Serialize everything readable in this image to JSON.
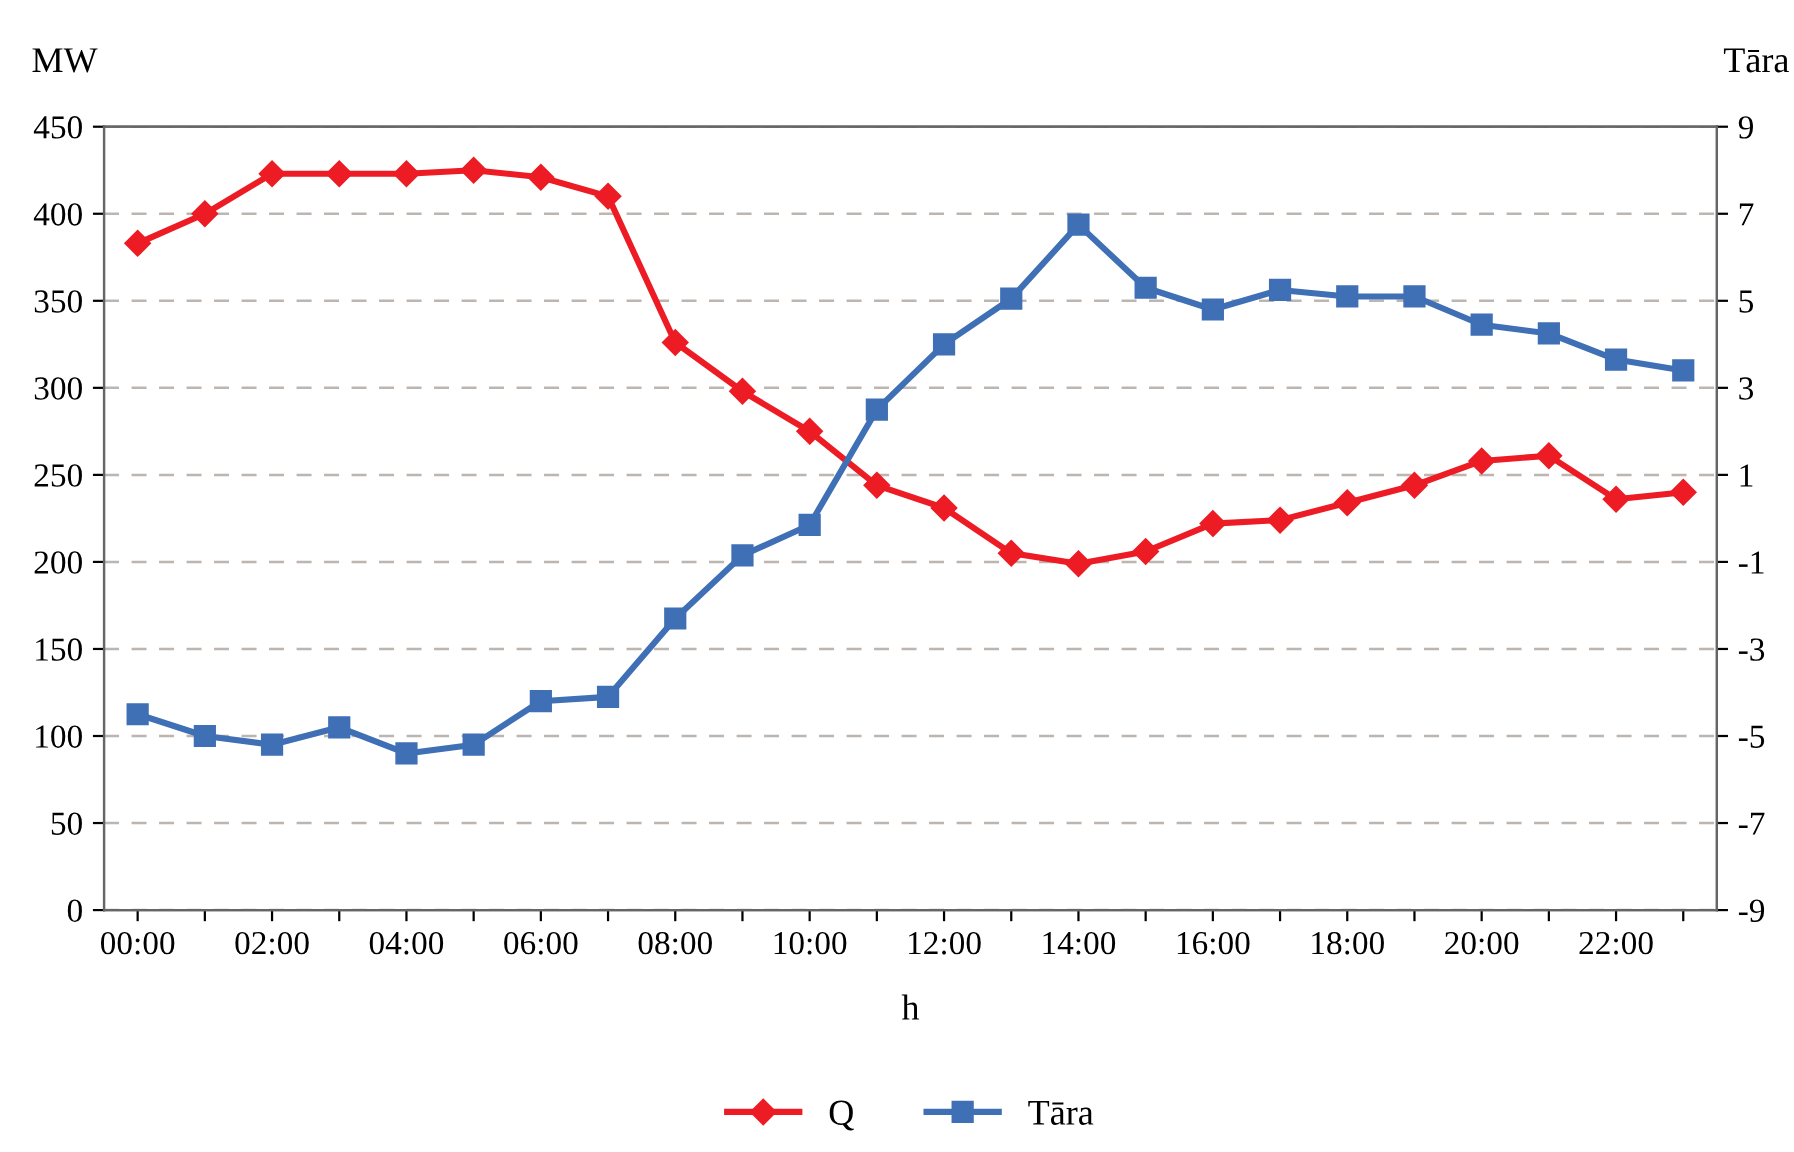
{
  "chart_data": {
    "type": "line",
    "categories": [
      "00:00",
      null,
      "02:00",
      null,
      "04:00",
      null,
      "06:00",
      null,
      "08:00",
      null,
      "10:00",
      null,
      "12:00",
      null,
      "14:00",
      null,
      "16:00",
      null,
      "18:00",
      null,
      "20:00",
      null,
      "22:00",
      null
    ],
    "xlabel": "h",
    "ylabel": "MW",
    "y2label": "Tāra",
    "series": [
      {
        "name": "Q",
        "color": "#ed1c24",
        "marker": "diamond",
        "values": [
          383,
          400,
          423,
          423,
          423,
          425,
          421,
          410,
          326,
          298,
          275,
          244,
          231,
          205,
          199,
          206,
          222,
          224,
          234,
          244,
          258,
          261,
          236,
          240
        ]
      },
      {
        "name": "Tāra",
        "color": "#3f6fb5",
        "marker": "square",
        "axis": "y2",
        "values": [
          -4.5,
          -5.0,
          -5.2,
          -4.8,
          -5.4,
          -5.2,
          -4.2,
          -4.1,
          -2.3,
          -0.85,
          -0.15,
          2.5,
          4.0,
          5.05,
          6.75,
          5.3,
          4.8,
          5.25,
          5.1,
          5.1,
          4.45,
          4.25,
          3.65,
          3.4
        ]
      }
    ],
    "ylim": [
      0,
      450
    ],
    "yticks": [
      0,
      50,
      100,
      150,
      200,
      250,
      300,
      350,
      400,
      450
    ],
    "y2lim": [
      -9,
      9
    ],
    "y2ticks": [
      -9,
      -7,
      -5,
      -3,
      -1,
      1,
      3,
      5,
      7,
      9
    ],
    "grid": "y",
    "legend": "bottom",
    "line_style": "solid"
  }
}
